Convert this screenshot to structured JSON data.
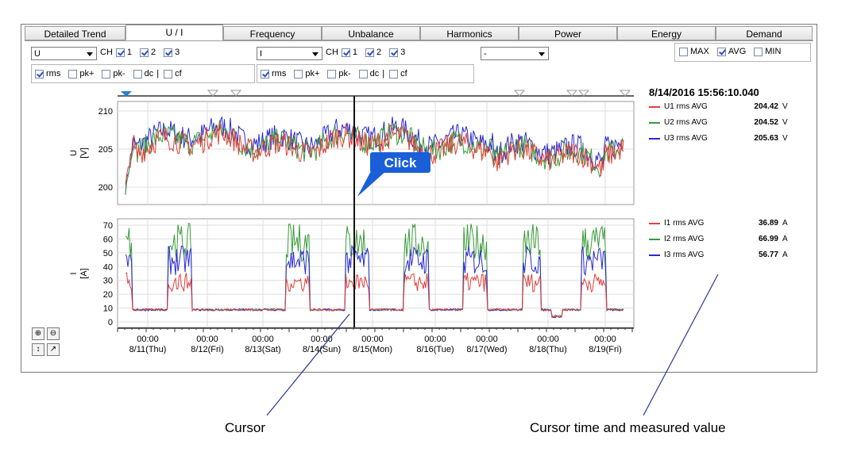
{
  "tabs": [
    {
      "label": "Detailed Trend",
      "active": false
    },
    {
      "label": "U / I",
      "active": true
    },
    {
      "label": "Frequency",
      "active": false
    },
    {
      "label": "Unbalance",
      "active": false
    },
    {
      "label": "Harmonics",
      "active": false
    },
    {
      "label": "Power",
      "active": false
    },
    {
      "label": "Energy",
      "active": false
    },
    {
      "label": "Demand",
      "active": false
    }
  ],
  "left_controls": {
    "select_value": "U",
    "ch_label": "CH",
    "channels": [
      {
        "label": "1",
        "checked": true
      },
      {
        "label": "2",
        "checked": true
      },
      {
        "label": "3",
        "checked": true
      }
    ],
    "types": [
      {
        "label": "rms",
        "checked": true
      },
      {
        "label": "pk+",
        "checked": false
      },
      {
        "label": "pk-",
        "checked": false
      },
      {
        "label": "dc",
        "checked": false
      },
      {
        "label": "cf",
        "checked": false
      }
    ]
  },
  "right_controls": {
    "select_value": "I",
    "ch_label": "CH",
    "channels": [
      {
        "label": "1",
        "checked": true
      },
      {
        "label": "2",
        "checked": true
      },
      {
        "label": "3",
        "checked": true
      }
    ],
    "types": [
      {
        "label": "rms",
        "checked": true
      },
      {
        "label": "pk+",
        "checked": false
      },
      {
        "label": "pk-",
        "checked": false
      },
      {
        "label": "dc",
        "checked": false
      },
      {
        "label": "cf",
        "checked": false
      }
    ]
  },
  "third_select_value": "-",
  "stat_options": [
    {
      "label": "MAX",
      "checked": false
    },
    {
      "label": "AVG",
      "checked": true
    },
    {
      "label": "MIN",
      "checked": false
    }
  ],
  "cursor_time": "8/14/2016 15:56:10.040",
  "readings_u": [
    {
      "label": "U1 rms AVG",
      "value": "204.42",
      "unit": "V",
      "color": "#e0403a"
    },
    {
      "label": "U2 rms AVG",
      "value": "204.52",
      "unit": "V",
      "color": "#3a9a3a"
    },
    {
      "label": "U3 rms AVG",
      "value": "205.63",
      "unit": "V",
      "color": "#2a2ad0"
    }
  ],
  "readings_i": [
    {
      "label": "I1 rms AVG",
      "value": "36.89",
      "unit": "A",
      "color": "#e0403a"
    },
    {
      "label": "I2 rms AVG",
      "value": "66.99",
      "unit": "A",
      "color": "#3a9a3a"
    },
    {
      "label": "I3 rms AVG",
      "value": "56.77",
      "unit": "A",
      "color": "#2a2ad0"
    }
  ],
  "chart_u": {
    "ylabel": "U",
    "yunit": "[V]",
    "yticks": [
      "210",
      "205",
      "200"
    ]
  },
  "chart_i": {
    "ylabel": "I",
    "yunit": "[A]",
    "yticks": [
      "70",
      "60",
      "50",
      "40",
      "30",
      "20",
      "10",
      "0"
    ]
  },
  "x_ticks": [
    {
      "time": "00:00",
      "date": "8/11(Thu)"
    },
    {
      "time": "00:00",
      "date": "8/12(Fri)"
    },
    {
      "time": "00:00",
      "date": "8/13(Sat)"
    },
    {
      "time": "00:00",
      "date": "8/14(Sun)"
    },
    {
      "time": "00:00",
      "date": "8/15(Mon)"
    },
    {
      "time": "00:00",
      "date": "8/16(Tue)"
    },
    {
      "time": "00:00",
      "date": "8/17(Wed)"
    },
    {
      "time": "00:00",
      "date": "8/18(Thu)"
    },
    {
      "time": "00:00",
      "date": "8/19(Fri)"
    }
  ],
  "callout": "Click",
  "caption_cursor": "Cursor",
  "caption_readout": "Cursor time and measured value"
}
